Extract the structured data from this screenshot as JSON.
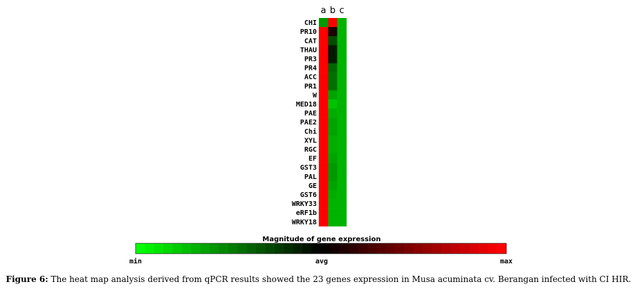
{
  "chart_data": {
    "type": "heatmap",
    "columns": [
      "a",
      "b",
      "c"
    ],
    "rows": [
      "CHI",
      "PR10",
      "CAT",
      "THAU",
      "PR3",
      "PR4",
      "ACC",
      "PR1",
      "W",
      "MED18",
      "PAE",
      "PAE2",
      "Chi",
      "XYL",
      "RGC",
      "EF",
      "GST3",
      "PAL",
      "GE",
      "GST6",
      "WRKY33",
      "eRF1b",
      "WRKY18"
    ],
    "values": [
      [
        0.2,
        1.0,
        0.15
      ],
      [
        1.0,
        0.55,
        0.15
      ],
      [
        1.0,
        0.35,
        0.15
      ],
      [
        1.0,
        0.45,
        0.15
      ],
      [
        1.0,
        0.45,
        0.15
      ],
      [
        1.0,
        0.3,
        0.15
      ],
      [
        1.0,
        0.28,
        0.15
      ],
      [
        1.0,
        0.28,
        0.15
      ],
      [
        1.0,
        0.18,
        0.15
      ],
      [
        1.0,
        0.12,
        0.15
      ],
      [
        1.0,
        0.16,
        0.15
      ],
      [
        1.0,
        0.18,
        0.15
      ],
      [
        1.0,
        0.18,
        0.15
      ],
      [
        1.0,
        0.16,
        0.15
      ],
      [
        1.0,
        0.16,
        0.15
      ],
      [
        1.0,
        0.18,
        0.15
      ],
      [
        1.0,
        0.2,
        0.15
      ],
      [
        1.0,
        0.2,
        0.15
      ],
      [
        1.0,
        0.18,
        0.15
      ],
      [
        1.0,
        0.16,
        0.15
      ],
      [
        1.0,
        0.15,
        0.15
      ],
      [
        1.0,
        0.15,
        0.15
      ],
      [
        1.0,
        0.15,
        0.15
      ]
    ],
    "color_scale": {
      "min_color": "#00ff00",
      "avg_color": "#000000",
      "max_color": "#ff0000"
    },
    "legend": {
      "title": "Magnitude of gene expression",
      "min_label": "min",
      "avg_label": "avg",
      "max_label": "max"
    }
  },
  "caption": {
    "label": "Figure 6:",
    "text": " The heat map analysis derived from qPCR results showed the 23 genes expression in Musa acuminata cv. Berangan infected with CI HIR."
  }
}
